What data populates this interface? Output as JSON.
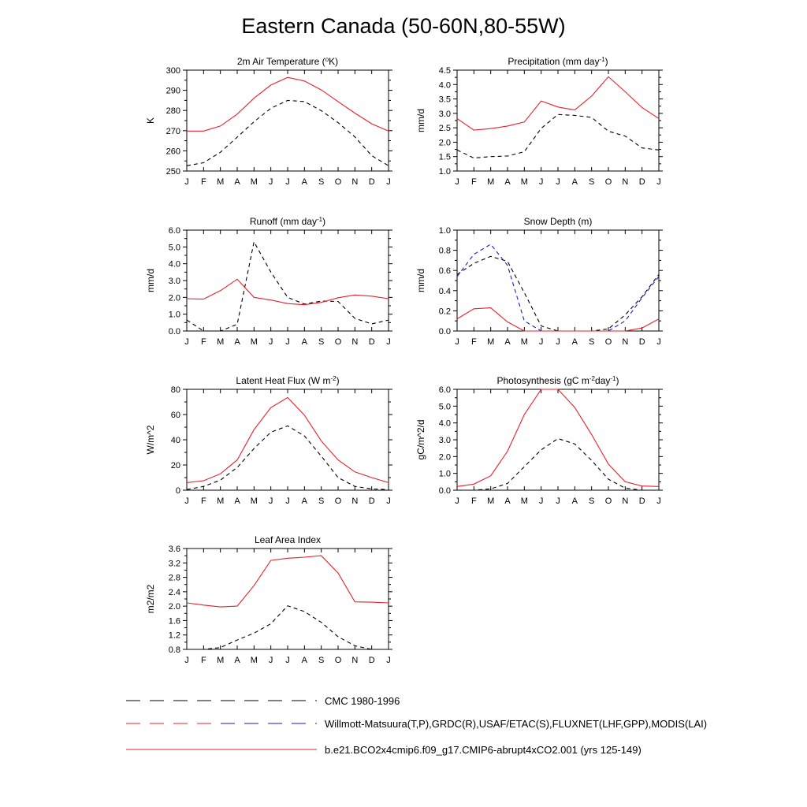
{
  "page": {
    "title": "Eastern Canada (50-60N,80-55W)"
  },
  "months": [
    "J",
    "F",
    "M",
    "A",
    "M",
    "J",
    "J",
    "A",
    "S",
    "O",
    "N",
    "D",
    "J"
  ],
  "colors": {
    "model": "#e8202a",
    "obs": "#000000",
    "obs_alt": "#1a1acd"
  },
  "chart_data": [
    {
      "type": "line",
      "title": "2m Air Temperature (°K)",
      "title_parts": {
        "pre": "2m Air Temperature (",
        "sup": "o",
        "post": "K)"
      },
      "ylabel": "K",
      "ylim": [
        250,
        300
      ],
      "yticks": [
        250,
        260,
        270,
        280,
        290,
        300
      ],
      "ytick_labels": [
        "250",
        "260",
        "270",
        "280",
        "290",
        "300"
      ],
      "series": [
        {
          "style": "model",
          "values": [
            269.8,
            269.8,
            272.3,
            278.2,
            286.1,
            292.6,
            296.4,
            294.6,
            290.2,
            284.4,
            278.7,
            273.4,
            269.8
          ]
        },
        {
          "style": "obs",
          "values": [
            252.6,
            254.1,
            259.3,
            266.8,
            274.4,
            281.1,
            285.0,
            284.4,
            279.9,
            274.0,
            266.9,
            257.6,
            252.6
          ]
        }
      ]
    },
    {
      "type": "line",
      "title": "Precipitation (mm day-1)",
      "title_parts": {
        "pre": "Precipitation (mm day",
        "sup": "-1",
        "post": ")"
      },
      "ylabel": "mm/d",
      "ylim": [
        1.0,
        4.5
      ],
      "yticks": [
        1.0,
        1.5,
        2.0,
        2.5,
        3.0,
        3.5,
        4.0,
        4.5
      ],
      "ytick_labels": [
        "1.0",
        "1.5",
        "2.0",
        "2.5",
        "3.0",
        "3.5",
        "4.0",
        "4.5"
      ],
      "series": [
        {
          "style": "model",
          "values": [
            2.82,
            2.42,
            2.47,
            2.56,
            2.7,
            3.43,
            3.22,
            3.12,
            3.6,
            4.27,
            3.75,
            3.2,
            2.82
          ]
        },
        {
          "style": "obs",
          "values": [
            1.73,
            1.45,
            1.5,
            1.52,
            1.67,
            2.48,
            2.96,
            2.93,
            2.86,
            2.38,
            2.21,
            1.8,
            1.73
          ]
        }
      ]
    },
    {
      "type": "line",
      "title": "Runoff (mm day-1)",
      "title_parts": {
        "pre": "Runoff (mm day",
        "sup": "-1",
        "post": ")"
      },
      "ylabel": "mm/d",
      "ylim": [
        0.0,
        6.0
      ],
      "yticks": [
        0,
        1,
        2,
        3,
        4,
        5,
        6
      ],
      "ytick_labels": [
        "0.0",
        "1.0",
        "2.0",
        "3.0",
        "4.0",
        "5.0",
        "6.0"
      ],
      "series": [
        {
          "style": "model",
          "values": [
            1.92,
            1.9,
            2.4,
            3.08,
            2.0,
            1.84,
            1.63,
            1.56,
            1.7,
            1.98,
            2.14,
            2.07,
            1.92
          ]
        },
        {
          "style": "obs",
          "values": [
            0.65,
            0.0,
            0.0,
            0.4,
            5.3,
            3.5,
            2.0,
            1.6,
            1.78,
            1.76,
            0.75,
            0.42,
            0.65
          ]
        }
      ]
    },
    {
      "type": "line",
      "title": "Snow Depth (m)",
      "title_parts": {
        "pre": "Snow Depth (m)",
        "sup": "",
        "post": ""
      },
      "ylabel": "mm/d",
      "ylim": [
        0.0,
        1.0
      ],
      "yticks": [
        0.0,
        0.2,
        0.4,
        0.6,
        0.8,
        1.0
      ],
      "ytick_labels": [
        "0.0",
        "0.2",
        "0.4",
        "0.6",
        "0.8",
        "1.0"
      ],
      "series": [
        {
          "style": "model",
          "values": [
            0.12,
            0.22,
            0.23,
            0.09,
            0.0,
            0.0,
            0.0,
            0.0,
            0.0,
            0.0,
            0.0,
            0.03,
            0.12
          ]
        },
        {
          "style": "obs",
          "values": [
            0.56,
            0.67,
            0.74,
            0.69,
            0.38,
            0.05,
            0.0,
            0.0,
            0.0,
            0.02,
            0.16,
            0.34,
            0.56
          ]
        },
        {
          "style": "obs_alt",
          "values": [
            0.54,
            0.76,
            0.86,
            0.65,
            0.1,
            0.0,
            0.0,
            0.0,
            0.0,
            0.0,
            0.1,
            0.33,
            0.54
          ]
        }
      ]
    },
    {
      "type": "line",
      "title": "Latent Heat Flux (W m-2)",
      "title_parts": {
        "pre": "Latent Heat Flux (W m",
        "sup": "-2",
        "post": ")"
      },
      "ylabel": "W/m^2",
      "ylim": [
        0,
        80
      ],
      "yticks": [
        0,
        20,
        40,
        60,
        80
      ],
      "ytick_labels": [
        "0",
        "20",
        "40",
        "60",
        "80"
      ],
      "series": [
        {
          "style": "model",
          "values": [
            6.0,
            7.5,
            13.0,
            24.0,
            48.0,
            65.5,
            73.5,
            59.5,
            39.0,
            24.0,
            14.5,
            10.0,
            6.0
          ]
        },
        {
          "style": "obs",
          "values": [
            0.5,
            3.0,
            8.0,
            18.0,
            33.0,
            46.0,
            51.0,
            43.0,
            27.0,
            10.0,
            3.0,
            1.0,
            0.5
          ]
        }
      ]
    },
    {
      "type": "line",
      "title": "Photosynthesis (gC m-2day-1)",
      "title_parts": {
        "pre": "Photosynthesis (gC m",
        "sup": "-2",
        "post": "day",
        "sup2": "-1",
        "post2": ")"
      },
      "ylabel": "gC/m^2/d",
      "ylim": [
        0.0,
        6.0
      ],
      "yticks": [
        0,
        1,
        2,
        3,
        4,
        5,
        6
      ],
      "ytick_labels": [
        "0.0",
        "1.0",
        "2.0",
        "3.0",
        "4.0",
        "5.0",
        "6.0"
      ],
      "series": [
        {
          "style": "model",
          "values": [
            0.22,
            0.36,
            0.86,
            2.32,
            4.5,
            6.0,
            6.0,
            4.92,
            3.31,
            1.55,
            0.5,
            0.25,
            0.22
          ]
        },
        {
          "style": "obs",
          "values": [
            0.0,
            0.0,
            0.08,
            0.4,
            1.4,
            2.4,
            3.07,
            2.75,
            1.77,
            0.65,
            0.12,
            0.0,
            0.0
          ]
        }
      ]
    },
    {
      "type": "line",
      "title": "Leaf Area Index",
      "title_parts": {
        "pre": "Leaf Area Index",
        "sup": "",
        "post": ""
      },
      "ylabel": "m2/m2",
      "ylim": [
        0.8,
        3.6
      ],
      "yticks": [
        0.8,
        1.2,
        1.6,
        2.0,
        2.4,
        2.8,
        3.2,
        3.6
      ],
      "ytick_labels": [
        "0.8",
        "1.2",
        "1.6",
        "2.0",
        "2.4",
        "2.8",
        "3.2",
        "3.6"
      ],
      "series": [
        {
          "style": "model",
          "values": [
            2.09,
            2.03,
            1.98,
            2.0,
            2.57,
            3.27,
            3.33,
            3.36,
            3.4,
            2.92,
            2.12,
            2.11,
            2.09
          ]
        },
        {
          "style": "obs",
          "values": [
            0.8,
            0.8,
            0.85,
            1.06,
            1.25,
            1.51,
            2.01,
            1.85,
            1.55,
            1.15,
            0.9,
            0.8,
            0.8
          ]
        }
      ]
    }
  ],
  "legend": [
    {
      "style": "obs",
      "label": "CMC 1980-1996"
    },
    {
      "style": "obs_mixed",
      "label": "Willmott-Matsuura(T,P),GRDC(R),USAF/ETAC(S),FLUXNET(LHF,GPP),MODIS(LAI)"
    },
    {
      "style": "model",
      "label": "b.e21.BCO2x4cmip6.f09_g17.CMIP6-abrupt4xCO2.001 (yrs 125-149)"
    }
  ]
}
